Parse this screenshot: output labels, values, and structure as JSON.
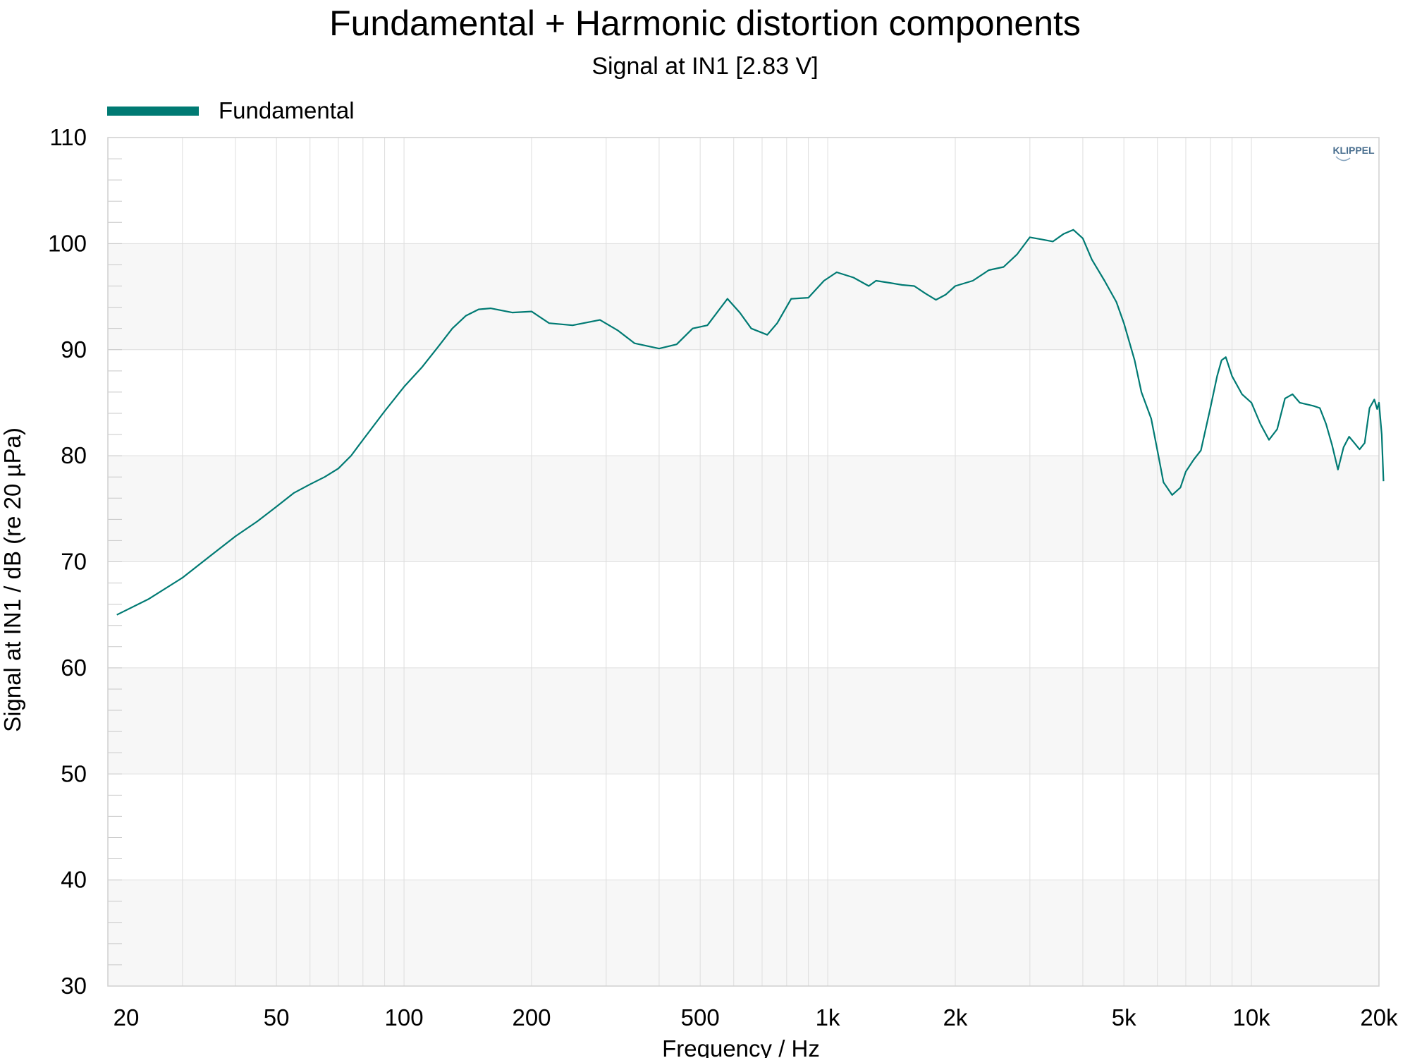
{
  "chart_data": {
    "type": "line",
    "title": "Fundamental + Harmonic distortion components",
    "subtitle": "Signal at IN1 [2.83 V]",
    "xlabel": "Frequency / Hz",
    "ylabel": "Signal at IN1 / dB (re 20 µPa)",
    "x_scale": "log",
    "xlim": [
      20,
      20000
    ],
    "ylim": [
      30,
      110
    ],
    "x_ticks": [
      {
        "value": 20,
        "label": "20"
      },
      {
        "value": 50,
        "label": "50"
      },
      {
        "value": 100,
        "label": "100"
      },
      {
        "value": 200,
        "label": "200"
      },
      {
        "value": 500,
        "label": "500"
      },
      {
        "value": 1000,
        "label": "1k"
      },
      {
        "value": 2000,
        "label": "2k"
      },
      {
        "value": 5000,
        "label": "5k"
      },
      {
        "value": 10000,
        "label": "10k"
      },
      {
        "value": 20000,
        "label": "20k"
      }
    ],
    "y_ticks": [
      {
        "value": 30,
        "label": "30"
      },
      {
        "value": 40,
        "label": "40"
      },
      {
        "value": 50,
        "label": "50"
      },
      {
        "value": 60,
        "label": "60"
      },
      {
        "value": 70,
        "label": "70"
      },
      {
        "value": 80,
        "label": "80"
      },
      {
        "value": 90,
        "label": "90"
      },
      {
        "value": 100,
        "label": "100"
      },
      {
        "value": 110,
        "label": "110"
      }
    ],
    "grid": true,
    "legend_position": "top-left",
    "watermark": "KLIPPEL",
    "colors": {
      "series": "#007a73",
      "band": "#f7f7f7",
      "grid": "#dedede",
      "frame": "#cfcfcf"
    },
    "series": [
      {
        "name": "Fundamental",
        "points": [
          [
            21,
            65
          ],
          [
            25,
            66.5
          ],
          [
            30,
            68.5
          ],
          [
            35,
            70.6
          ],
          [
            40,
            72.4
          ],
          [
            45,
            73.8
          ],
          [
            50,
            75.2
          ],
          [
            55,
            76.5
          ],
          [
            60,
            77.3
          ],
          [
            65,
            78
          ],
          [
            70,
            78.8
          ],
          [
            75,
            80
          ],
          [
            80,
            81.5
          ],
          [
            90,
            84.2
          ],
          [
            100,
            86.5
          ],
          [
            110,
            88.3
          ],
          [
            120,
            90.2
          ],
          [
            130,
            92
          ],
          [
            140,
            93.2
          ],
          [
            150,
            93.8
          ],
          [
            160,
            93.9
          ],
          [
            180,
            93.5
          ],
          [
            200,
            93.6
          ],
          [
            220,
            92.5
          ],
          [
            250,
            92.3
          ],
          [
            290,
            92.8
          ],
          [
            320,
            91.8
          ],
          [
            350,
            90.6
          ],
          [
            400,
            90.1
          ],
          [
            440,
            90.5
          ],
          [
            480,
            92
          ],
          [
            520,
            92.3
          ],
          [
            560,
            94
          ],
          [
            580,
            94.8
          ],
          [
            620,
            93.5
          ],
          [
            660,
            92
          ],
          [
            720,
            91.4
          ],
          [
            760,
            92.5
          ],
          [
            820,
            94.8
          ],
          [
            900,
            94.9
          ],
          [
            980,
            96.5
          ],
          [
            1050,
            97.3
          ],
          [
            1150,
            96.8
          ],
          [
            1250,
            96
          ],
          [
            1300,
            96.5
          ],
          [
            1400,
            96.3
          ],
          [
            1500,
            96.1
          ],
          [
            1600,
            96
          ],
          [
            1700,
            95.3
          ],
          [
            1800,
            94.7
          ],
          [
            1900,
            95.2
          ],
          [
            2000,
            96
          ],
          [
            2200,
            96.5
          ],
          [
            2400,
            97.5
          ],
          [
            2600,
            97.8
          ],
          [
            2800,
            99
          ],
          [
            3000,
            100.6
          ],
          [
            3200,
            100.4
          ],
          [
            3400,
            100.2
          ],
          [
            3600,
            100.9
          ],
          [
            3800,
            101.3
          ],
          [
            4000,
            100.5
          ],
          [
            4200,
            98.5
          ],
          [
            4500,
            96.5
          ],
          [
            4800,
            94.5
          ],
          [
            5000,
            92.5
          ],
          [
            5300,
            89
          ],
          [
            5500,
            86
          ],
          [
            5800,
            83.5
          ],
          [
            6000,
            80.5
          ],
          [
            6200,
            77.5
          ],
          [
            6500,
            76.3
          ],
          [
            6800,
            77
          ],
          [
            7000,
            78.5
          ],
          [
            7300,
            79.6
          ],
          [
            7600,
            80.5
          ],
          [
            8000,
            84.5
          ],
          [
            8300,
            87.5
          ],
          [
            8500,
            89
          ],
          [
            8700,
            89.3
          ],
          [
            9000,
            87.5
          ],
          [
            9500,
            85.8
          ],
          [
            10000,
            85
          ],
          [
            10500,
            83
          ],
          [
            11000,
            81.5
          ],
          [
            11500,
            82.5
          ],
          [
            12000,
            85.4
          ],
          [
            12500,
            85.8
          ],
          [
            13000,
            85
          ],
          [
            14000,
            84.7
          ],
          [
            14500,
            84.5
          ],
          [
            15000,
            83
          ],
          [
            15500,
            81
          ],
          [
            16000,
            78.7
          ],
          [
            16500,
            80.8
          ],
          [
            17000,
            81.8
          ],
          [
            17500,
            81.2
          ],
          [
            18000,
            80.6
          ],
          [
            18500,
            81.2
          ],
          [
            19000,
            84.5
          ],
          [
            19500,
            85.3
          ],
          [
            19800,
            84.4
          ],
          [
            20000,
            85
          ],
          [
            20300,
            82
          ],
          [
            20500,
            77.6
          ]
        ]
      }
    ]
  }
}
